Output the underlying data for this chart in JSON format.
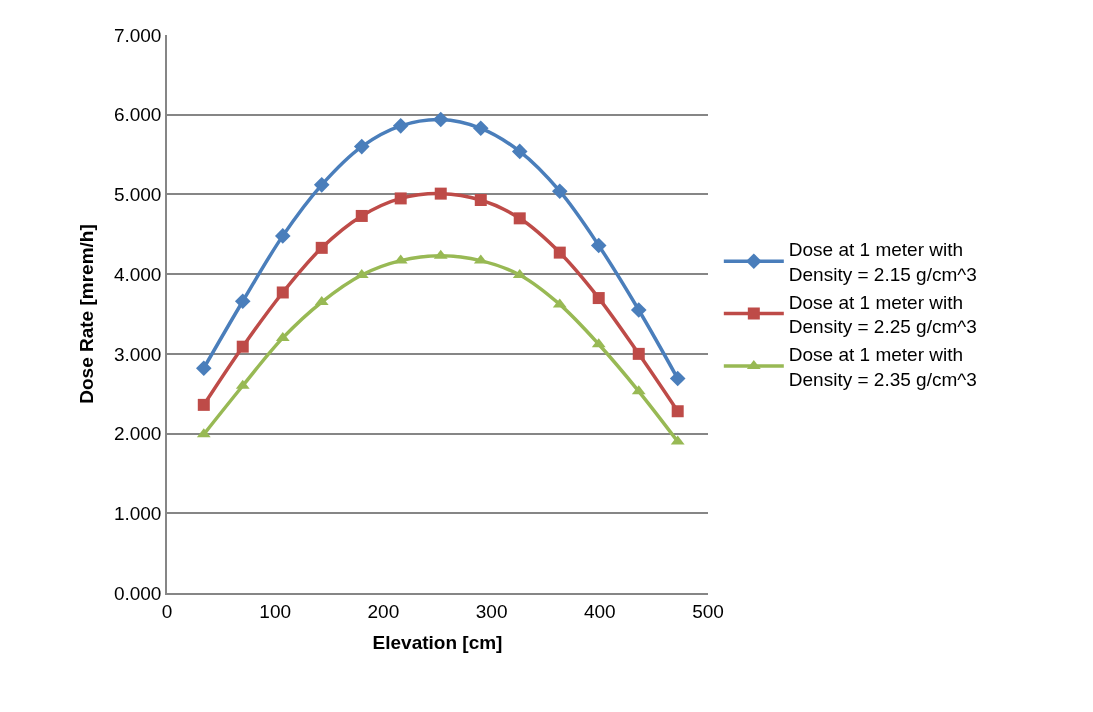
{
  "chart_data": {
    "type": "line",
    "xlabel": "Elevation [cm]",
    "ylabel": "Dose Rate [mrem/h]",
    "x": [
      34,
      70,
      107,
      143,
      180,
      216,
      253,
      290,
      326,
      363,
      399,
      436,
      472
    ],
    "xlim": [
      0,
      500
    ],
    "xticks": [
      0,
      100,
      200,
      300,
      400,
      500
    ],
    "ylim": [
      0,
      7
    ],
    "yticks": [
      {
        "value": 0,
        "label": "0.000"
      },
      {
        "value": 1,
        "label": "1.000"
      },
      {
        "value": 2,
        "label": "2.000"
      },
      {
        "value": 3,
        "label": "3.000"
      },
      {
        "value": 4,
        "label": "4.000"
      },
      {
        "value": 5,
        "label": "5.000"
      },
      {
        "value": 6,
        "label": "6.000"
      },
      {
        "value": 7,
        "label": "7.000"
      }
    ],
    "grid": "y",
    "legend": "right",
    "series": [
      {
        "name": "Dose at 1 meter with Density = 2.15 g/cm^3",
        "color": "#4a7ebb",
        "marker": "diamond",
        "values": [
          2.82,
          3.66,
          4.48,
          5.12,
          5.6,
          5.86,
          5.94,
          5.83,
          5.54,
          5.04,
          4.36,
          3.55,
          2.69
        ]
      },
      {
        "name": "Dose at 1 meter with Density = 2.25 g/cm^3",
        "color": "#be4b48",
        "marker": "square",
        "values": [
          2.36,
          3.09,
          3.77,
          4.33,
          4.73,
          4.95,
          5.01,
          4.93,
          4.7,
          4.27,
          3.7,
          3.0,
          2.28
        ]
      },
      {
        "name": "Dose at 1 meter with Density = 2.35 g/cm^3",
        "color": "#98b954",
        "marker": "triangle",
        "values": [
          1.99,
          2.6,
          3.2,
          3.65,
          3.99,
          4.17,
          4.23,
          4.17,
          3.99,
          3.62,
          3.12,
          2.53,
          1.9
        ]
      }
    ]
  }
}
